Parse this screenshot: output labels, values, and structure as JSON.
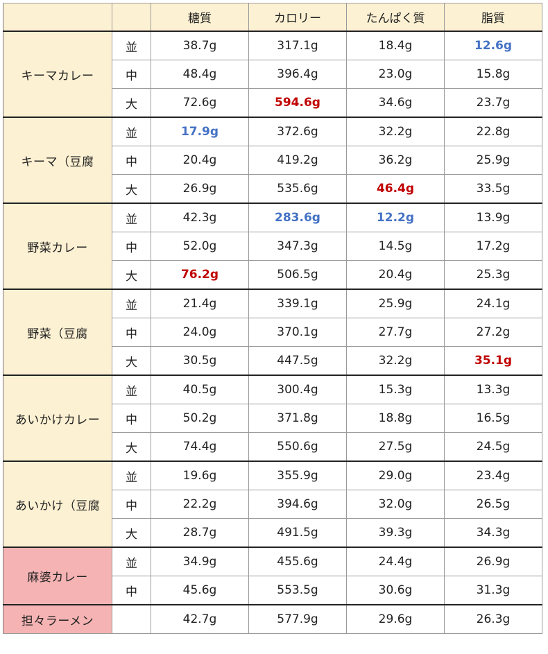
{
  "headers": [
    "",
    "",
    "糖質",
    "カロリー",
    "たんぱく質",
    "脂質"
  ],
  "colors": {
    "header_bg": "#fdf1d3",
    "item_bg": "#fdf1d3",
    "highlight_bg": "#f5b3b3",
    "min_value": "#4472c4",
    "max_value": "#c00000"
  },
  "groups": [
    {
      "name": "キーマカレー",
      "highlight": false,
      "rows": [
        {
          "size": "並",
          "values": [
            "38.7g",
            "317.1g",
            "18.4g",
            "12.6g"
          ],
          "marks": [
            "",
            "",
            "",
            "min"
          ]
        },
        {
          "size": "中",
          "values": [
            "48.4g",
            "396.4g",
            "23.0g",
            "15.8g"
          ],
          "marks": [
            "",
            "",
            "",
            ""
          ]
        },
        {
          "size": "大",
          "values": [
            "72.6g",
            "594.6g",
            "34.6g",
            "23.7g"
          ],
          "marks": [
            "",
            "max",
            "",
            ""
          ]
        }
      ]
    },
    {
      "name": "キーマ（豆腐",
      "highlight": false,
      "rows": [
        {
          "size": "並",
          "values": [
            "17.9g",
            "372.6g",
            "32.2g",
            "22.8g"
          ],
          "marks": [
            "min",
            "",
            "",
            ""
          ]
        },
        {
          "size": "中",
          "values": [
            "20.4g",
            "419.2g",
            "36.2g",
            "25.9g"
          ],
          "marks": [
            "",
            "",
            "",
            ""
          ]
        },
        {
          "size": "大",
          "values": [
            "26.9g",
            "535.6g",
            "46.4g",
            "33.5g"
          ],
          "marks": [
            "",
            "",
            "max",
            ""
          ]
        }
      ]
    },
    {
      "name": "野菜カレー",
      "highlight": false,
      "rows": [
        {
          "size": "並",
          "values": [
            "42.3g",
            "283.6g",
            "12.2g",
            "13.9g"
          ],
          "marks": [
            "",
            "min",
            "min",
            ""
          ]
        },
        {
          "size": "中",
          "values": [
            "52.0g",
            "347.3g",
            "14.5g",
            "17.2g"
          ],
          "marks": [
            "",
            "",
            "",
            ""
          ]
        },
        {
          "size": "大",
          "values": [
            "76.2g",
            "506.5g",
            "20.4g",
            "25.3g"
          ],
          "marks": [
            "max",
            "",
            "",
            ""
          ]
        }
      ]
    },
    {
      "name": "野菜（豆腐",
      "highlight": false,
      "rows": [
        {
          "size": "並",
          "values": [
            "21.4g",
            "339.1g",
            "25.9g",
            "24.1g"
          ],
          "marks": [
            "",
            "",
            "",
            ""
          ]
        },
        {
          "size": "中",
          "values": [
            "24.0g",
            "370.1g",
            "27.7g",
            "27.2g"
          ],
          "marks": [
            "",
            "",
            "",
            ""
          ]
        },
        {
          "size": "大",
          "values": [
            "30.5g",
            "447.5g",
            "32.2g",
            "35.1g"
          ],
          "marks": [
            "",
            "",
            "",
            "max"
          ]
        }
      ]
    },
    {
      "name": "あいかけカレー",
      "highlight": false,
      "rows": [
        {
          "size": "並",
          "values": [
            "40.5g",
            "300.4g",
            "15.3g",
            "13.3g"
          ],
          "marks": [
            "",
            "",
            "",
            ""
          ]
        },
        {
          "size": "中",
          "values": [
            "50.2g",
            "371.8g",
            "18.8g",
            "16.5g"
          ],
          "marks": [
            "",
            "",
            "",
            ""
          ]
        },
        {
          "size": "大",
          "values": [
            "74.4g",
            "550.6g",
            "27.5g",
            "24.5g"
          ],
          "marks": [
            "",
            "",
            "",
            ""
          ]
        }
      ]
    },
    {
      "name": "あいかけ（豆腐",
      "highlight": false,
      "rows": [
        {
          "size": "並",
          "values": [
            "19.6g",
            "355.9g",
            "29.0g",
            "23.4g"
          ],
          "marks": [
            "",
            "",
            "",
            ""
          ]
        },
        {
          "size": "中",
          "values": [
            "22.2g",
            "394.6g",
            "32.0g",
            "26.5g"
          ],
          "marks": [
            "",
            "",
            "",
            ""
          ]
        },
        {
          "size": "大",
          "values": [
            "28.7g",
            "491.5g",
            "39.3g",
            "34.3g"
          ],
          "marks": [
            "",
            "",
            "",
            ""
          ]
        }
      ]
    },
    {
      "name": "麻婆カレー",
      "highlight": true,
      "rows": [
        {
          "size": "並",
          "values": [
            "34.9g",
            "455.6g",
            "24.4g",
            "26.9g"
          ],
          "marks": [
            "",
            "",
            "",
            ""
          ]
        },
        {
          "size": "中",
          "values": [
            "45.6g",
            "553.5g",
            "30.6g",
            "31.3g"
          ],
          "marks": [
            "",
            "",
            "",
            ""
          ]
        }
      ]
    },
    {
      "name": "担々ラーメン",
      "highlight": true,
      "rows": [
        {
          "size": "",
          "values": [
            "42.7g",
            "577.9g",
            "29.6g",
            "26.3g"
          ],
          "marks": [
            "",
            "",
            "",
            ""
          ]
        }
      ]
    }
  ]
}
